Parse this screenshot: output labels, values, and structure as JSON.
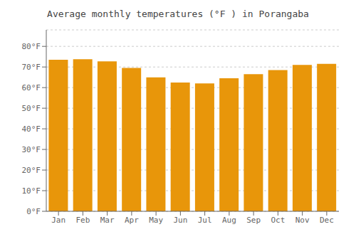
{
  "chart_data": {
    "type": "bar",
    "title": "Average monthly temperatures (°F ) in Porangaba",
    "categories": [
      "Jan",
      "Feb",
      "Mar",
      "Apr",
      "May",
      "Jun",
      "Jul",
      "Aug",
      "Sep",
      "Oct",
      "Nov",
      "Dec"
    ],
    "values": [
      73.5,
      73.8,
      72.7,
      69.5,
      65.0,
      62.5,
      62.0,
      64.5,
      66.5,
      68.5,
      71.0,
      71.5
    ],
    "color": "#E8960A",
    "ylim": [
      0,
      88
    ],
    "yticks": [
      {
        "value": 0,
        "label": "0°F"
      },
      {
        "value": 10,
        "label": "10°F"
      },
      {
        "value": 20,
        "label": "20°F"
      },
      {
        "value": 30,
        "label": "30°F"
      },
      {
        "value": 40,
        "label": "40°F"
      },
      {
        "value": 50,
        "label": "50°F"
      },
      {
        "value": 60,
        "label": "60°F"
      },
      {
        "value": 70,
        "label": "70°F"
      },
      {
        "value": 80,
        "label": "80°F"
      }
    ],
    "grid": true
  }
}
